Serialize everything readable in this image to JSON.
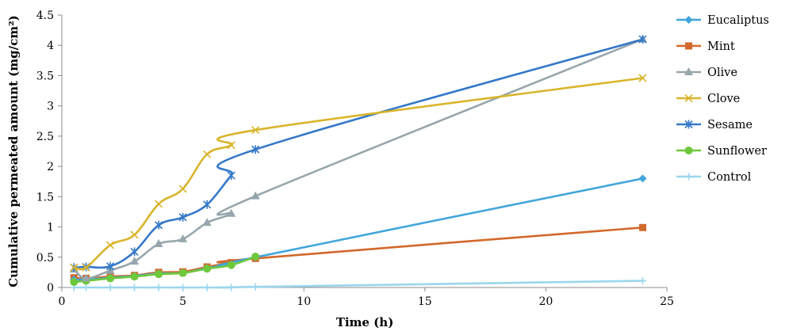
{
  "chart_data": {
    "type": "line",
    "xlabel": "Time (h)",
    "ylabel": "Cumulative permeated amount (mg/cm²)",
    "xlim": [
      0,
      25
    ],
    "ylim": [
      0,
      4.5
    ],
    "xticks": [
      "0",
      "5",
      "10",
      "15",
      "20",
      "25"
    ],
    "yticks": [
      "0",
      "0.5",
      "1",
      "1.5",
      "2",
      "2.5",
      "3",
      "3.5",
      "4",
      "4.5"
    ],
    "grid": false,
    "legend_position": "right",
    "series": [
      {
        "name": "Eucaliptus",
        "color": "#41a6dc",
        "marker": "diamond",
        "x": [
          0.5,
          1,
          2,
          3,
          4,
          5,
          6,
          7,
          8,
          24
        ],
        "y": [
          0.13,
          0.13,
          0.16,
          0.19,
          0.23,
          0.24,
          0.32,
          0.38,
          0.5,
          1.8
        ]
      },
      {
        "name": "Mint",
        "color": "#d2692c",
        "marker": "square",
        "x": [
          0.5,
          1,
          2,
          3,
          4,
          5,
          6,
          7,
          8,
          24
        ],
        "y": [
          0.16,
          0.15,
          0.18,
          0.2,
          0.25,
          0.26,
          0.34,
          0.41,
          0.48,
          0.99
        ]
      },
      {
        "name": "Olive",
        "color": "#97a6ac",
        "marker": "triangle",
        "x": [
          0.5,
          1,
          2,
          3,
          4,
          5,
          6,
          7,
          8,
          24
        ],
        "y": [
          0.3,
          0.15,
          0.28,
          0.43,
          0.72,
          0.8,
          1.07,
          1.22,
          1.51,
          4.1
        ]
      },
      {
        "name": "Clove",
        "color": "#d9b52c",
        "marker": "x",
        "x": [
          0.5,
          1,
          2,
          3,
          4,
          5,
          6,
          7,
          8,
          24
        ],
        "y": [
          0.33,
          0.33,
          0.7,
          0.87,
          1.38,
          1.63,
          2.2,
          2.35,
          2.6,
          3.46
        ]
      },
      {
        "name": "Sesame",
        "color": "#3478c8",
        "marker": "star",
        "x": [
          0.5,
          1,
          2,
          3,
          4,
          5,
          6,
          7,
          8,
          24
        ],
        "y": [
          0.33,
          0.34,
          0.35,
          0.59,
          1.03,
          1.16,
          1.37,
          1.85,
          2.28,
          4.1
        ]
      },
      {
        "name": "Sunflower",
        "color": "#6ec83c",
        "marker": "circle",
        "x": [
          0.5,
          1,
          2,
          3,
          4,
          5,
          6,
          7,
          8
        ],
        "y": [
          0.09,
          0.11,
          0.15,
          0.18,
          0.22,
          0.24,
          0.31,
          0.37,
          0.51
        ]
      },
      {
        "name": "Control",
        "color": "#9ad6ee",
        "marker": "plus",
        "x": [
          0.5,
          1,
          2,
          3,
          4,
          5,
          6,
          7,
          8,
          24
        ],
        "y": [
          0.0,
          0.0,
          0.0,
          0.0,
          0.0,
          0.0,
          0.0,
          0.0,
          0.01,
          0.11
        ]
      }
    ]
  }
}
